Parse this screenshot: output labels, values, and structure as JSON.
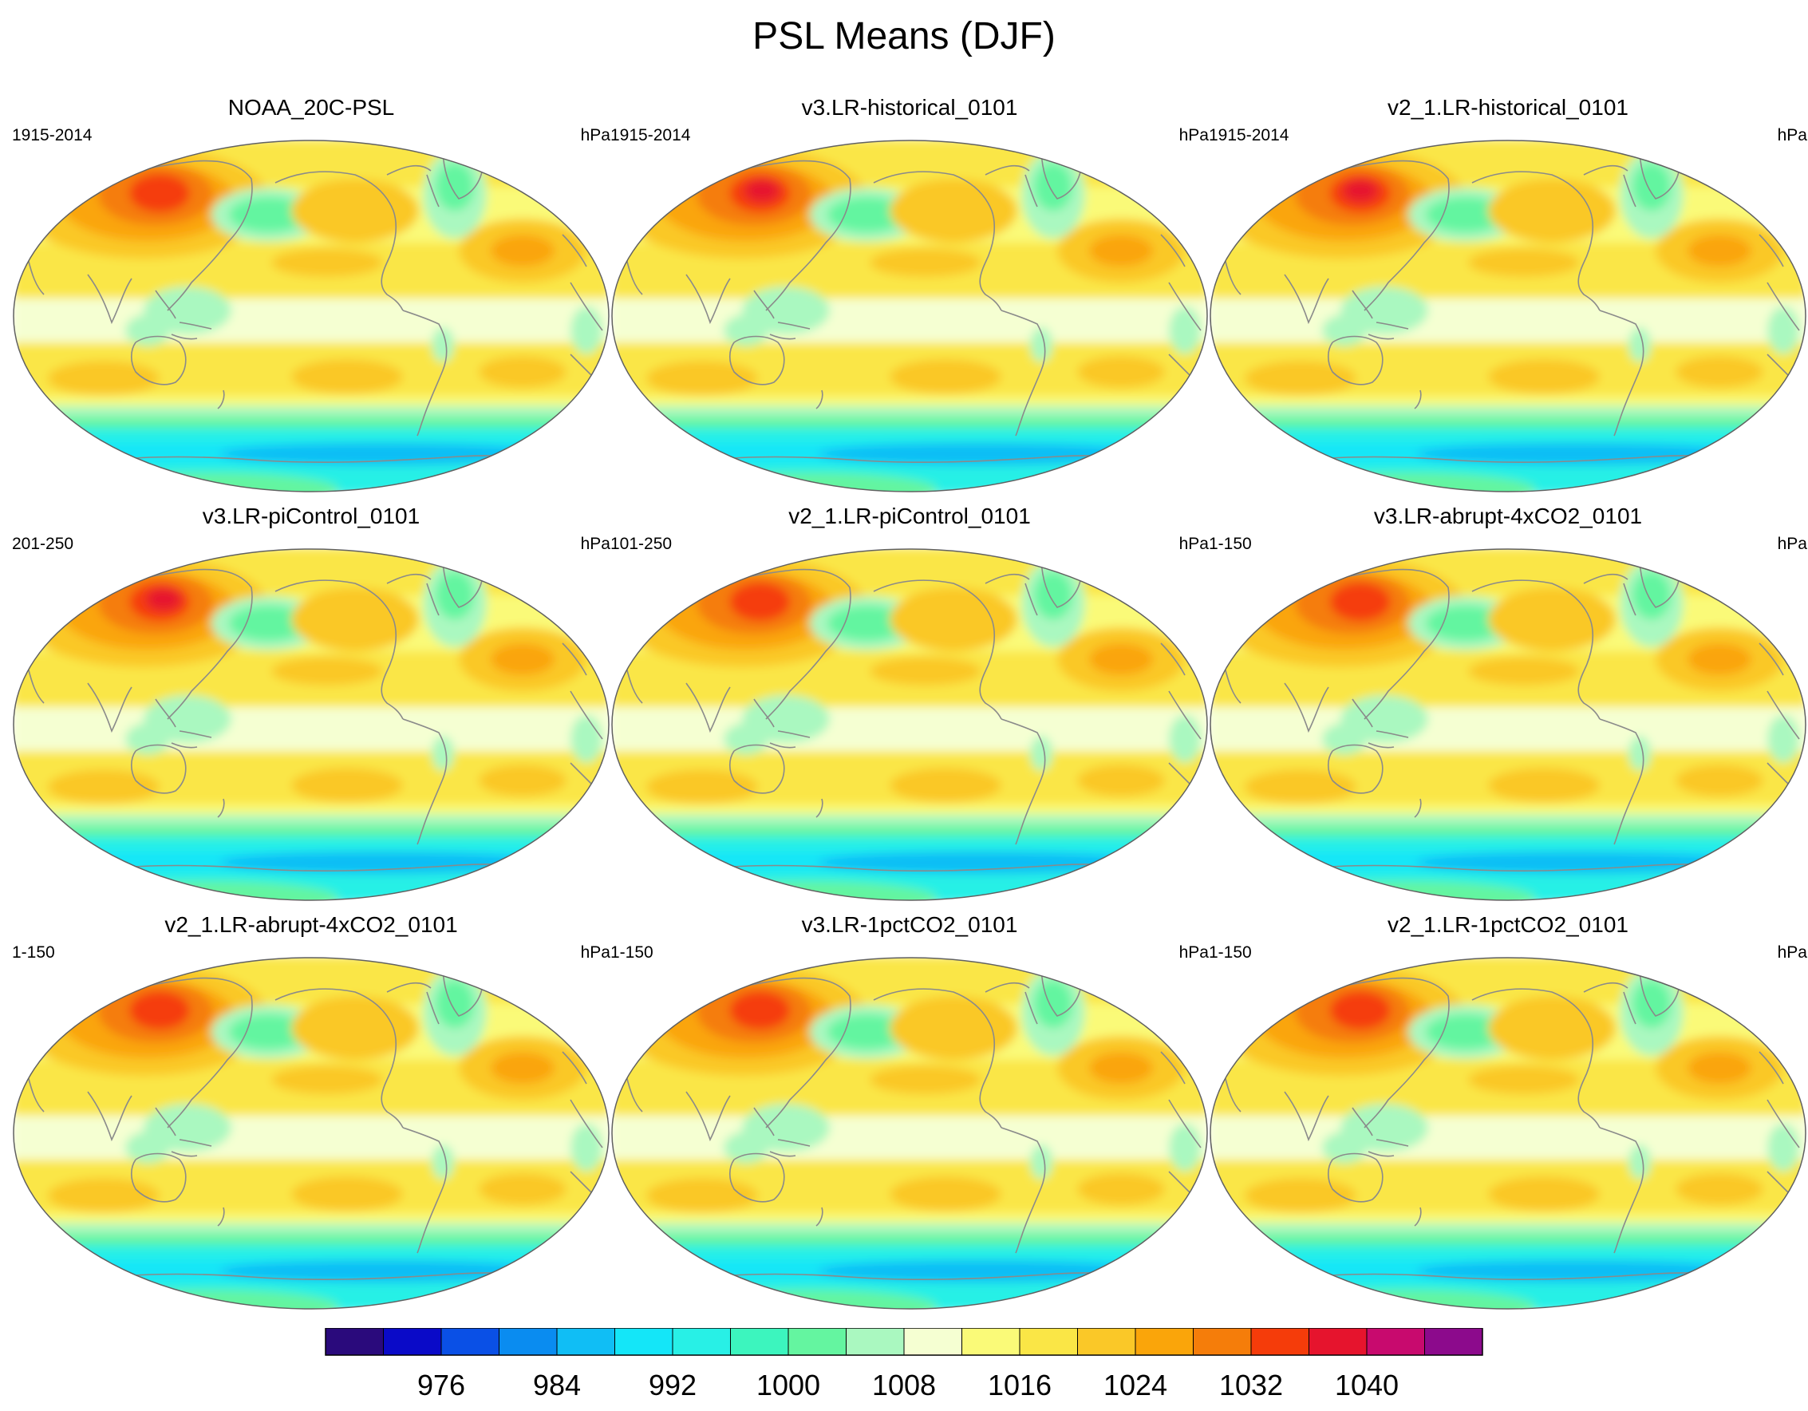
{
  "title": "PSL Means (DJF)",
  "panels": [
    {
      "title": "NOAA_20C-PSL",
      "years": "1915-2014",
      "units": "hPa",
      "variant": 0
    },
    {
      "title": "v3.LR-historical_0101",
      "years": "1915-2014",
      "units": "hPa",
      "variant": 1
    },
    {
      "title": "v2_1.LR-historical_0101",
      "years": "1915-2014",
      "units": "hPa",
      "variant": 2
    },
    {
      "title": "v3.LR-piControl_0101",
      "years": "201-250",
      "units": "hPa",
      "variant": 3
    },
    {
      "title": "v2_1.LR-piControl_0101",
      "years": "101-250",
      "units": "hPa",
      "variant": 4
    },
    {
      "title": "v3.LR-abrupt-4xCO2_0101",
      "years": "1-150",
      "units": "hPa",
      "variant": 5
    },
    {
      "title": "v2_1.LR-abrupt-4xCO2_0101",
      "years": "1-150",
      "units": "hPa",
      "variant": 6
    },
    {
      "title": "v3.LR-1pctCO2_0101",
      "years": "1-150",
      "units": "hPa",
      "variant": 7
    },
    {
      "title": "v2_1.LR-1pctCO2_0101",
      "years": "1-150",
      "units": "hPa",
      "variant": 8
    }
  ],
  "colorbar": {
    "labels": [
      "976",
      "984",
      "992",
      "1000",
      "1008",
      "1016",
      "1024",
      "1032",
      "1040"
    ],
    "colors": [
      "#2a0a7c",
      "#0a0ac8",
      "#0a50e6",
      "#0a8cf0",
      "#10bef5",
      "#14e6f8",
      "#28f0e6",
      "#3cf5be",
      "#64f5a0",
      "#aaf8c0",
      "#f5ffd2",
      "#fafa78",
      "#fae646",
      "#fac828",
      "#faa50a",
      "#f57d0a",
      "#f53c0a",
      "#e6142d",
      "#c80a6e",
      "#8c0a8c"
    ]
  },
  "colors": {
    "land_outline": "#8a8a8a",
    "map_border": "#606060"
  }
}
